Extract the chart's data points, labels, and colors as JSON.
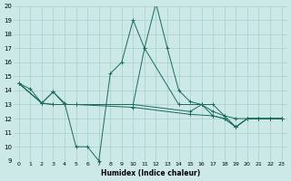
{
  "xlabel": "Humidex (Indice chaleur)",
  "xlim": [
    -0.5,
    23.5
  ],
  "ylim": [
    9,
    20
  ],
  "xticks": [
    0,
    1,
    2,
    3,
    4,
    5,
    6,
    7,
    8,
    9,
    10,
    11,
    12,
    13,
    14,
    15,
    16,
    17,
    18,
    19,
    20,
    21,
    22,
    23
  ],
  "yticks": [
    9,
    10,
    11,
    12,
    13,
    14,
    15,
    16,
    17,
    18,
    19,
    20
  ],
  "bg_color": "#cce9e8",
  "grid_color": "#aad4d3",
  "line_color": "#1a6b5a",
  "line1_x": [
    0,
    1,
    2,
    3,
    4,
    5,
    6,
    7,
    8,
    9,
    10,
    11,
    12,
    13,
    14,
    15,
    16,
    17,
    18,
    19,
    20,
    21,
    22,
    23
  ],
  "line1_y": [
    14.5,
    14.1,
    13.1,
    13.9,
    13.1,
    10.0,
    10.0,
    9.0,
    15.2,
    16.0,
    19.0,
    17.0,
    20.2,
    17.0,
    14.0,
    13.2,
    13.0,
    12.2,
    12.0,
    11.4,
    12.0,
    12.0,
    12.0,
    12.0
  ],
  "line2_x": [
    0,
    2,
    3,
    4,
    5,
    10,
    11,
    14,
    16,
    17,
    18,
    19,
    20,
    21,
    22,
    23
  ],
  "line2_y": [
    14.5,
    13.1,
    13.9,
    13.0,
    13.0,
    13.0,
    17.0,
    13.0,
    13.0,
    13.0,
    12.2,
    12.0,
    12.0,
    12.0,
    12.0,
    12.0
  ],
  "line3_x": [
    0,
    2,
    3,
    4,
    5,
    10,
    15,
    16,
    17,
    18,
    19,
    20,
    21,
    22,
    23
  ],
  "line3_y": [
    14.5,
    13.1,
    13.0,
    13.0,
    13.0,
    13.0,
    12.5,
    13.0,
    12.5,
    12.2,
    11.4,
    12.0,
    12.0,
    12.0,
    12.0
  ],
  "line4_x": [
    0,
    2,
    3,
    5,
    10,
    15,
    17,
    18,
    19,
    20,
    21,
    22,
    23
  ],
  "line4_y": [
    14.5,
    13.1,
    13.0,
    13.0,
    12.8,
    12.3,
    12.2,
    12.0,
    11.4,
    12.0,
    12.0,
    12.0,
    12.0
  ]
}
